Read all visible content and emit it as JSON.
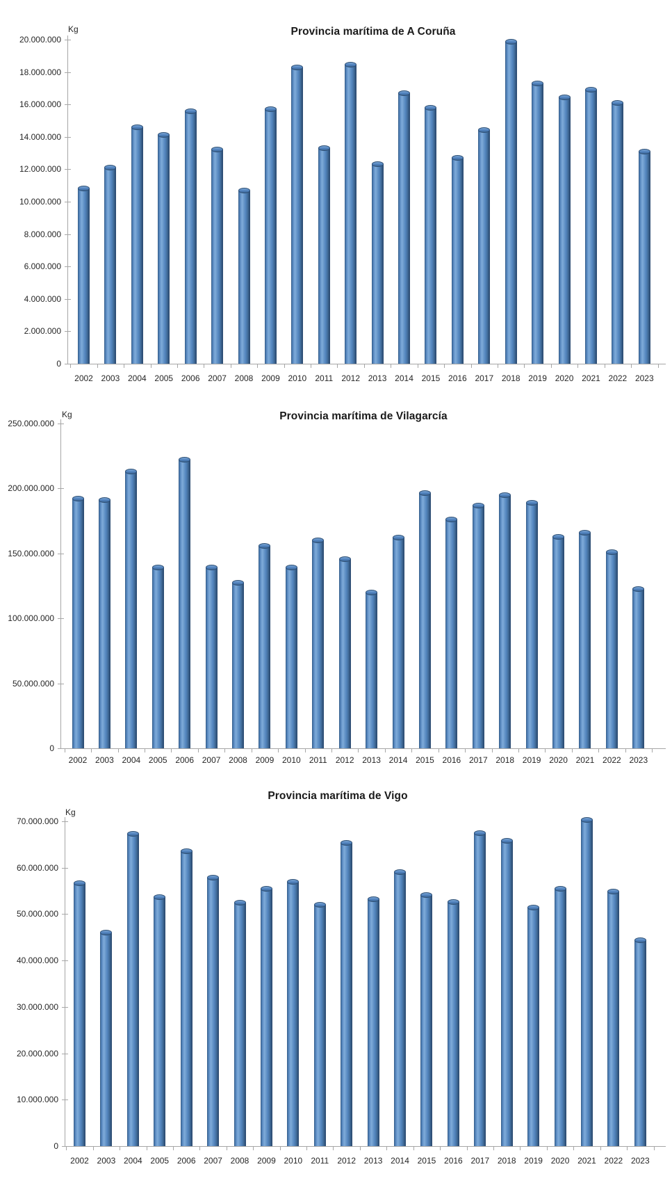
{
  "chart_data": [
    {
      "type": "bar",
      "title": "Provincia marítima de A Coruña",
      "ylabel": "Kg",
      "xlabel": "",
      "legend": "none",
      "grid": "off",
      "number_format": "dot-thousands",
      "bar_color": "#4f81bd",
      "ylim": [
        0,
        20000000
      ],
      "ytick_step": 2000000,
      "categories": [
        "2002",
        "2003",
        "2004",
        "2005",
        "2006",
        "2007",
        "2008",
        "2009",
        "2010",
        "2011",
        "2012",
        "2013",
        "2014",
        "2015",
        "2016",
        "2017",
        "2018",
        "2019",
        "2020",
        "2021",
        "2022",
        "2023"
      ],
      "values": [
        10800000,
        12100000,
        14600000,
        14100000,
        15600000,
        13200000,
        10700000,
        15700000,
        18300000,
        13300000,
        18450000,
        12300000,
        16700000,
        15800000,
        12700000,
        14400000,
        19850000,
        17300000,
        16450000,
        16900000,
        16100000,
        13100000
      ]
    },
    {
      "type": "bar",
      "title": "Provincia marítima de Vilagarcía",
      "ylabel": "Kg",
      "xlabel": "",
      "legend": "none",
      "grid": "off",
      "number_format": "dot-thousands",
      "bar_color": "#4f81bd",
      "ylim": [
        0,
        250000000
      ],
      "ytick_step": 50000000,
      "categories": [
        "2002",
        "2003",
        "2004",
        "2005",
        "2006",
        "2007",
        "2008",
        "2009",
        "2010",
        "2011",
        "2012",
        "2013",
        "2014",
        "2015",
        "2016",
        "2017",
        "2018",
        "2019",
        "2020",
        "2021",
        "2022",
        "2023"
      ],
      "values": [
        192000000,
        191000000,
        213000000,
        139000000,
        222000000,
        139000000,
        127500000,
        156000000,
        139000000,
        160000000,
        145500000,
        120000000,
        162000000,
        196500000,
        176000000,
        187000000,
        195000000,
        189000000,
        163000000,
        166000000,
        151000000,
        122500000
      ]
    },
    {
      "type": "bar",
      "title": "Provincia marítima de Vigo",
      "ylabel": "Kg",
      "xlabel": "",
      "legend": "none",
      "grid": "off",
      "number_format": "dot-thousands",
      "bar_color": "#4f81bd",
      "ylim": [
        0,
        70000000
      ],
      "ytick_step": 10000000,
      "categories": [
        "2002",
        "2003",
        "2004",
        "2005",
        "2006",
        "2007",
        "2008",
        "2009",
        "2010",
        "2011",
        "2012",
        "2013",
        "2014",
        "2015",
        "2016",
        "2017",
        "2018",
        "2019",
        "2020",
        "2021",
        "2022",
        "2023"
      ],
      "values": [
        56600000,
        46000000,
        67300000,
        53700000,
        63500000,
        57900000,
        52500000,
        55500000,
        57000000,
        52000000,
        65300000,
        53200000,
        59000000,
        54100000,
        52600000,
        67500000,
        65800000,
        51400000,
        55400000,
        70300000,
        54900000,
        44300000
      ]
    }
  ]
}
